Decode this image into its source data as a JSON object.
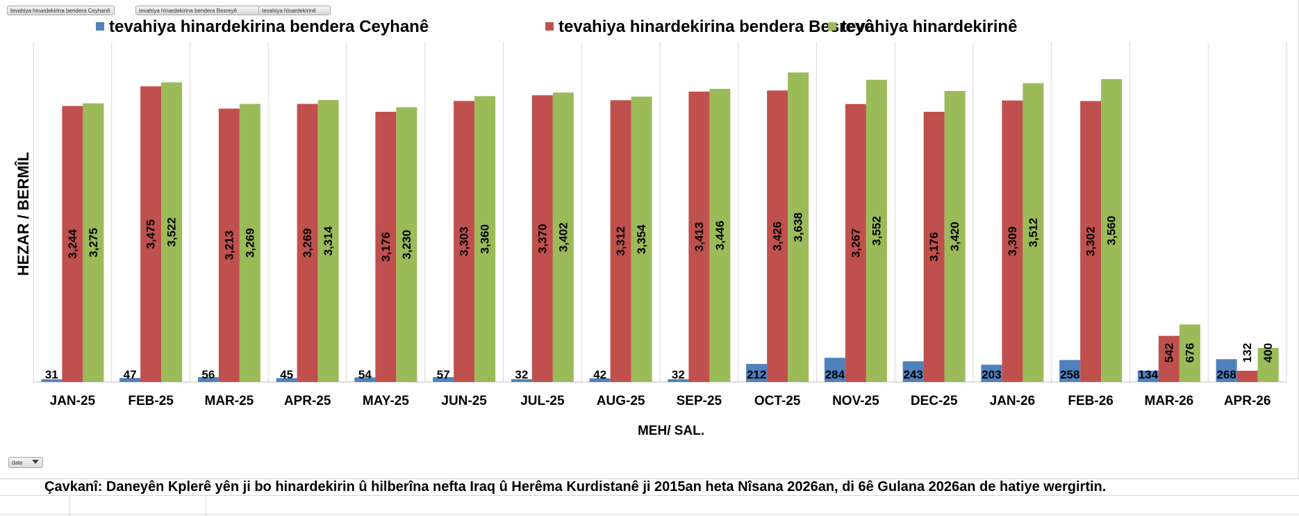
{
  "field_buttons": [
    "tevahiya hinardekirina bendera Ceyhanê",
    "tevahiya hinardekirina bendera Besreyê",
    "tevahiya hinardekirinê"
  ],
  "filter_button": {
    "label": "date"
  },
  "source_note": "Çavkanî: Daneyên Kplerê yên ji bo hinardekirin û hilberîna nefta Iraq û Herêma Kurdistanê ji 2015an heta Nîsana 2026an, di 6ê Gulana 2026an de hatiye wergirtin.",
  "chart_data": {
    "type": "bar",
    "title": "",
    "xlabel": "MEH/  SAL.",
    "ylabel": "HEZAR / BERMÎL",
    "ylim": [
      0,
      4000
    ],
    "legend_position": "top",
    "grid": "vertical-category-separators",
    "categories": [
      "JAN-25",
      "FEB-25",
      "MAR-25",
      "APR-25",
      "MAY-25",
      "JUN-25",
      "JUL-25",
      "AUG-25",
      "SEP-25",
      "OCT-25",
      "NOV-25",
      "DEC-25",
      "JAN-26",
      "FEB-26",
      "MAR-26",
      "APR-26"
    ],
    "series": [
      {
        "name": "tevahiya hinardekirina bendera Ceyhanê",
        "color": "#4f81bd",
        "values": [
          31,
          47,
          56,
          45,
          54,
          57,
          32,
          42,
          32,
          212,
          284,
          243,
          203,
          258,
          134,
          268
        ],
        "labels": [
          "31",
          "47",
          "56",
          "45",
          "54",
          "57",
          "32",
          "42",
          "32",
          "212",
          "284",
          "243",
          "203",
          "258",
          "134",
          "268"
        ]
      },
      {
        "name": "tevahiya hinardekirina bendera Besreyê",
        "color": "#c0504d",
        "values": [
          3244,
          3475,
          3213,
          3269,
          3176,
          3303,
          3370,
          3312,
          3413,
          3426,
          3267,
          3176,
          3309,
          3302,
          542,
          132
        ],
        "labels": [
          "3,244",
          "3,475",
          "3,213",
          "3,269",
          "3,176",
          "3,303",
          "3,370",
          "3,312",
          "3,413",
          "3,426",
          "3,267",
          "3,176",
          "3,309",
          "3,302",
          "542",
          "132"
        ]
      },
      {
        "name": "tevahiya hinardekirinê",
        "color": "#9bbb59",
        "values": [
          3275,
          3522,
          3269,
          3314,
          3230,
          3360,
          3402,
          3354,
          3446,
          3638,
          3552,
          3420,
          3512,
          3560,
          676,
          400
        ],
        "labels": [
          "3,275",
          "3,522",
          "3,269",
          "3,314",
          "3,230",
          "3,360",
          "3,402",
          "3,354",
          "3,446",
          "3,638",
          "3,552",
          "3,420",
          "3,512",
          "3,560",
          "676",
          "400"
        ]
      }
    ]
  }
}
